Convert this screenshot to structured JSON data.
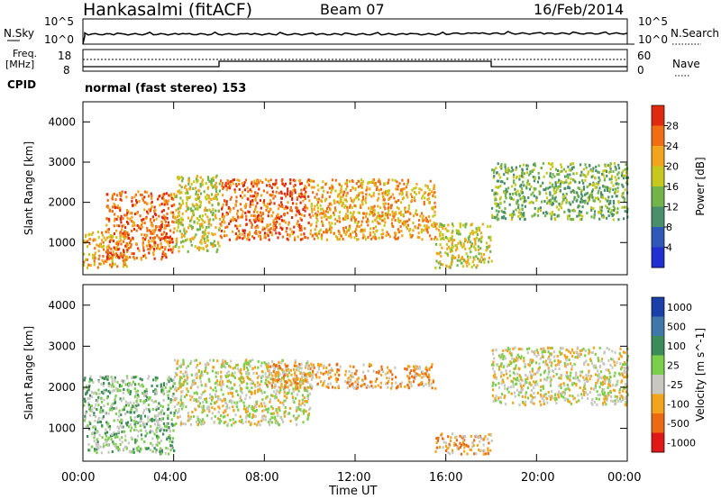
{
  "header": {
    "station": "Hankasalmi (fitACF)",
    "beam": "Beam 07",
    "date": "16/Feb/2014"
  },
  "noise_panel": {
    "left_label": "N.Sky",
    "right_label": "N.Search",
    "left_ticks": [
      "10^5",
      "10^0"
    ],
    "right_ticks": [
      "10^5",
      "10^0"
    ]
  },
  "freq_panel": {
    "left_label_line1": "Freq.",
    "left_label_line2": "[MHz]",
    "right_label": "Nave",
    "left_ticks": [
      "18",
      "8"
    ],
    "right_ticks": [
      "60",
      "0"
    ]
  },
  "cpid": {
    "label": "CPID",
    "mode": "normal (fast stereo) 153"
  },
  "x_axis": {
    "label": "Time UT",
    "ticks": [
      "00:00",
      "04:00",
      "08:00",
      "12:00",
      "16:00",
      "20:00",
      "00:00"
    ]
  },
  "chart_data": [
    {
      "type": "heatmap",
      "title": "",
      "xlabel": "Time UT",
      "ylabel": "Slant Range [km]",
      "x_range_hours": [
        0,
        24
      ],
      "ylim": [
        200,
        4500
      ],
      "y_ticks": [
        1000,
        2000,
        3000,
        4000
      ],
      "colorbar": {
        "label": "Power [dB]",
        "ticks": [
          "4",
          "8",
          "12",
          "16",
          "20",
          "24",
          "28"
        ],
        "colors": [
          "#1f2fd0",
          "#2f58b8",
          "#4a8f6c",
          "#72b34a",
          "#c7c81e",
          "#f2a41c",
          "#f06d14",
          "#e02a10"
        ]
      },
      "scatter_regions": [
        {
          "t": [
            0.0,
            2.0
          ],
          "range_km": [
            400,
            1300
          ],
          "level": 5
        },
        {
          "t": [
            1.0,
            4.0
          ],
          "range_km": [
            600,
            2300
          ],
          "level": 6
        },
        {
          "t": [
            4.0,
            6.0
          ],
          "range_km": [
            800,
            2700
          ],
          "level": 4
        },
        {
          "t": [
            6.0,
            10.0
          ],
          "range_km": [
            1100,
            2600
          ],
          "level": 6
        },
        {
          "t": [
            10.0,
            15.5
          ],
          "range_km": [
            1100,
            2600
          ],
          "level": 5
        },
        {
          "t": [
            15.5,
            18.0
          ],
          "range_km": [
            400,
            1500
          ],
          "level": 4
        },
        {
          "t": [
            18.0,
            24.0
          ],
          "range_km": [
            1600,
            3000
          ],
          "level": 3
        }
      ]
    },
    {
      "type": "heatmap",
      "title": "",
      "xlabel": "Time UT",
      "ylabel": "Slant Range [km]",
      "x_range_hours": [
        0,
        24
      ],
      "ylim": [
        200,
        4500
      ],
      "y_ticks": [
        1000,
        2000,
        3000,
        4000
      ],
      "colorbar": {
        "label": "Velocity [m s^-1]",
        "ticks": [
          "1000",
          "500",
          "100",
          "25",
          "-25",
          "-100",
          "-500",
          "-1000"
        ],
        "colors": [
          "#1a3fa8",
          "#3f78a8",
          "#3c8c5a",
          "#7ccf4a",
          "#c8c8c0",
          "#f2a41c",
          "#ec6a12",
          "#e01818"
        ]
      },
      "scatter_regions": [
        {
          "t": [
            0.0,
            4.0
          ],
          "range_km": [
            400,
            2300
          ],
          "level": 3
        },
        {
          "t": [
            4.0,
            10.0
          ],
          "range_km": [
            1100,
            2700
          ],
          "level": 4
        },
        {
          "t": [
            8.0,
            15.5
          ],
          "range_km": [
            2000,
            2600
          ],
          "level": 5
        },
        {
          "t": [
            15.5,
            18.0
          ],
          "range_km": [
            400,
            900
          ],
          "level": 5
        },
        {
          "t": [
            18.0,
            24.0
          ],
          "range_km": [
            1600,
            3000
          ],
          "level": 4
        }
      ]
    }
  ]
}
